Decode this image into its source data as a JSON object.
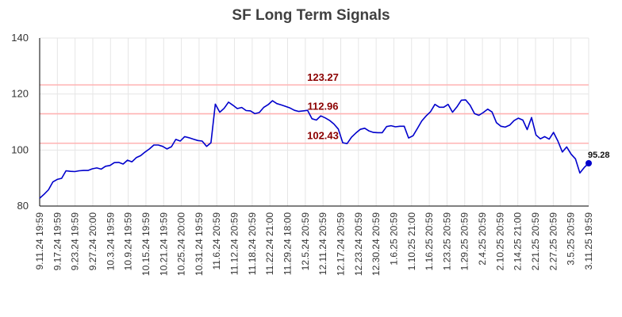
{
  "chart_data": {
    "type": "line",
    "title": "SF Long Term Signals",
    "xlabel": "",
    "ylabel": "",
    "ylim": [
      80,
      140
    ],
    "yticks": [
      80,
      100,
      120,
      140
    ],
    "grid": true,
    "x_tick_labels": [
      "9.11.24 19:59",
      "9.17.24 19:59",
      "9.23.24 19:59",
      "9.27.24 20:00",
      "10.3.24 19:59",
      "10.9.24 19:59",
      "10.15.24 19:59",
      "10.21.24 19:59",
      "10.25.24 20:00",
      "10.31.24 19:59",
      "11.6.24 20:59",
      "11.12.24 20:59",
      "11.18.24 20:59",
      "11.22.24 21:00",
      "11.29.24 18:00",
      "12.5.24 20:59",
      "12.11.24 20:59",
      "12.17.24 20:59",
      "12.23.24 20:59",
      "12.30.24 20:59",
      "1.6.25 20:59",
      "1.10.25 21:00",
      "1.16.25 20:59",
      "1.23.25 20:59",
      "1.29.25 20:59",
      "2.4.25 20:59",
      "2.10.25 20:59",
      "2.14.25 21:00",
      "2.21.25 20:59",
      "2.27.25 20:59",
      "3.5.25 20:59",
      "3.11.25 19:59"
    ],
    "series": [
      {
        "color": "#0000cc",
        "values": [
          82.8,
          84.2,
          85.8,
          88.6,
          89.5,
          89.9,
          92.6,
          92.4,
          92.3,
          92.6,
          92.7,
          92.7,
          93.3,
          93.6,
          93.2,
          94.2,
          94.5,
          95.5,
          95.6,
          95.0,
          96.4,
          95.8,
          97.3,
          98.0,
          99.3,
          100.4,
          101.8,
          101.8,
          101.3,
          100.4,
          101.2,
          103.8,
          103.2,
          104.8,
          104.4,
          103.9,
          103.4,
          103.2,
          101.3,
          102.6,
          116.4,
          113.5,
          114.9,
          117.1,
          116.0,
          114.8,
          115.2,
          114.1,
          114.0,
          113.0,
          113.4,
          115.2,
          116.2,
          117.6,
          116.6,
          116.1,
          115.6,
          115.0,
          114.2,
          113.8,
          114.0,
          114.2,
          111.2,
          110.7,
          112.2,
          111.5,
          110.6,
          109.3,
          107.5,
          102.6,
          102.3,
          104.6,
          106.1,
          107.4,
          107.8,
          106.8,
          106.3,
          106.2,
          106.2,
          108.4,
          108.7,
          108.3,
          108.5,
          108.5,
          104.3,
          105.1,
          107.7,
          110.4,
          112.2,
          113.7,
          116.3,
          115.3,
          115.3,
          116.3,
          113.5,
          115.4,
          117.8,
          117.9,
          116.0,
          113.0,
          112.4,
          113.4,
          114.6,
          113.6,
          109.8,
          108.5,
          108.2,
          108.9,
          110.5,
          111.4,
          110.7,
          107.3,
          111.6,
          105.4,
          104.0,
          104.8,
          103.9,
          106.3,
          103.2,
          99.3,
          101.1,
          98.5,
          96.8,
          91.8,
          93.8,
          95.28
        ]
      }
    ],
    "reference_lines": [
      {
        "value": 123.27,
        "label": "123.27",
        "line_color": "#ffb3b3",
        "label_color": "#8b0000"
      },
      {
        "value": 112.96,
        "label": "112.96",
        "line_color": "#ffb3b3",
        "label_color": "#8b0000"
      },
      {
        "value": 102.43,
        "label": "102.43",
        "line_color": "#ffb3b3",
        "label_color": "#8b0000"
      }
    ],
    "last_point": {
      "value": 95.28,
      "label": "95.28"
    },
    "colors": {
      "grid": "#e6e6e6",
      "axis": "#000000",
      "title": "#404040"
    }
  }
}
